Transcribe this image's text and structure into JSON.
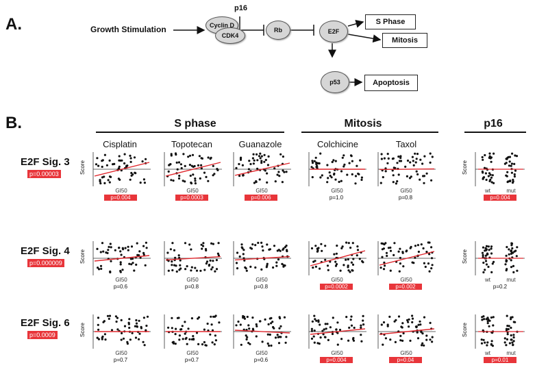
{
  "panelA": {
    "letter": "A.",
    "growth": "Growth Stimulation",
    "cyclin": "Cyclin D",
    "cdk4": "CDK4",
    "p16": "p16",
    "rb": "Rb",
    "e2f": "E2F",
    "p53": "p53",
    "sphase": "S Phase",
    "mitosis": "Mitosis",
    "apoptosis": "Apoptosis"
  },
  "panelB": {
    "letter": "B.",
    "groups": [
      {
        "title": "S phase"
      },
      {
        "title": "Mitosis"
      },
      {
        "title": "p16"
      }
    ],
    "columns": [
      "Cisplatin",
      "Topotecan",
      "Guanazole",
      "Colchicine",
      "Taxol"
    ],
    "xlabel": "GI50",
    "ylabel": "Score",
    "p16_x": [
      "wt",
      "mut"
    ],
    "rows": [
      {
        "label": "E2F Sig. 3",
        "pval": "p=0.00003",
        "pvals": [
          "p=0.004",
          "p=0.0003",
          "p=0.006",
          "p=1.0",
          "p=0.8",
          "p=0.004"
        ],
        "sig": [
          true,
          true,
          true,
          false,
          false,
          true
        ],
        "slopes": [
          0.5,
          0.5,
          0.45,
          0,
          0.02
        ]
      },
      {
        "label": "E2F Sig. 4",
        "pval": "p=0.000009",
        "pvals": [
          "p=0.6",
          "p=0.8",
          "p=0.8",
          "p=0.0002",
          "p=0.002",
          "p=0.2"
        ],
        "sig": [
          false,
          false,
          false,
          true,
          true,
          false
        ],
        "slopes": [
          0.2,
          0.12,
          0.12,
          0.55,
          0.5
        ]
      },
      {
        "label": "E2F Sig. 6",
        "pval": "p=0.0009",
        "pvals": [
          "p=0.7",
          "p=0.7",
          "p=0.6",
          "p=0.004",
          "p=0.04",
          "p=0.01"
        ],
        "sig": [
          false,
          false,
          false,
          true,
          true,
          true
        ],
        "slopes": [
          0,
          0,
          -0.1,
          0.2,
          0.2
        ]
      }
    ]
  }
}
